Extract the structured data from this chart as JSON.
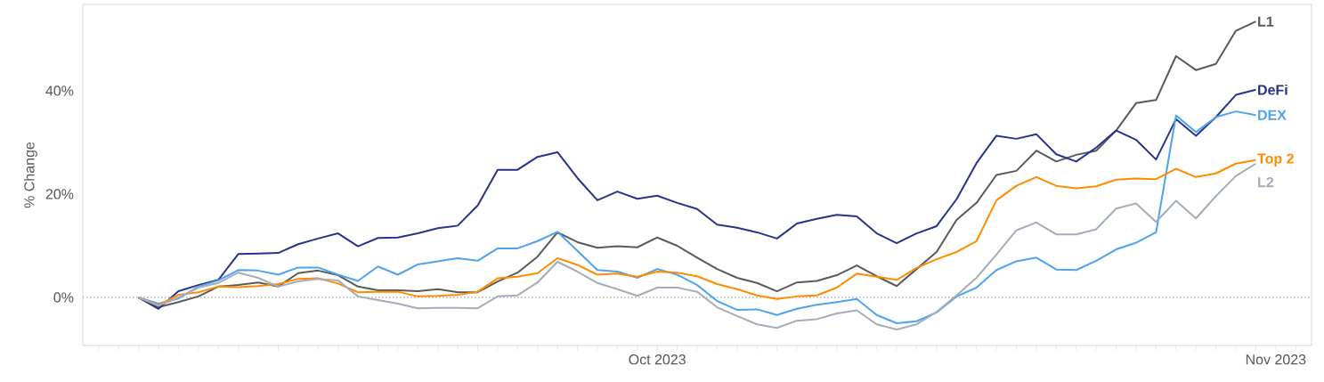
{
  "chart_data": {
    "type": "line",
    "ylabel": "% Change",
    "x": [
      "2023-09-05",
      "2023-09-06",
      "2023-09-07",
      "2023-09-08",
      "2023-09-09",
      "2023-09-10",
      "2023-09-11",
      "2023-09-12",
      "2023-09-13",
      "2023-09-14",
      "2023-09-15",
      "2023-09-16",
      "2023-09-17",
      "2023-09-18",
      "2023-09-19",
      "2023-09-20",
      "2023-09-21",
      "2023-09-22",
      "2023-09-23",
      "2023-09-24",
      "2023-09-25",
      "2023-09-26",
      "2023-09-27",
      "2023-09-28",
      "2023-09-29",
      "2023-09-30",
      "2023-10-01",
      "2023-10-02",
      "2023-10-03",
      "2023-10-04",
      "2023-10-05",
      "2023-10-06",
      "2023-10-07",
      "2023-10-08",
      "2023-10-09",
      "2023-10-10",
      "2023-10-11",
      "2023-10-12",
      "2023-10-13",
      "2023-10-14",
      "2023-10-15",
      "2023-10-16",
      "2023-10-17",
      "2023-10-18",
      "2023-10-19",
      "2023-10-20",
      "2023-10-21",
      "2023-10-22",
      "2023-10-23",
      "2023-10-24",
      "2023-10-25",
      "2023-10-26",
      "2023-10-27",
      "2023-10-28",
      "2023-10-29",
      "2023-10-30",
      "2023-10-31"
    ],
    "xlim": [
      "2023-09-02T05:00",
      "2023-11-02T19:00"
    ],
    "xticks": [
      {
        "value": "2023-09-03",
        "label": null
      },
      {
        "value": "2023-09-04",
        "label": null
      },
      {
        "value": "2023-09-05",
        "label": null
      },
      {
        "value": "2023-09-06",
        "label": null
      },
      {
        "value": "2023-09-07",
        "label": null
      },
      {
        "value": "2023-09-08",
        "label": null
      },
      {
        "value": "2023-09-09",
        "label": null
      },
      {
        "value": "2023-09-10",
        "label": null
      },
      {
        "value": "2023-09-11",
        "label": null
      },
      {
        "value": "2023-09-12",
        "label": null
      },
      {
        "value": "2023-09-13",
        "label": null
      },
      {
        "value": "2023-09-14",
        "label": null
      },
      {
        "value": "2023-09-15",
        "label": null
      },
      {
        "value": "2023-09-16",
        "label": null
      },
      {
        "value": "2023-09-17",
        "label": null
      },
      {
        "value": "2023-09-18",
        "label": null
      },
      {
        "value": "2023-09-19",
        "label": null
      },
      {
        "value": "2023-09-20",
        "label": null
      },
      {
        "value": "2023-09-21",
        "label": null
      },
      {
        "value": "2023-09-22",
        "label": null
      },
      {
        "value": "2023-09-23",
        "label": null
      },
      {
        "value": "2023-09-24",
        "label": null
      },
      {
        "value": "2023-09-25",
        "label": null
      },
      {
        "value": "2023-09-26",
        "label": null
      },
      {
        "value": "2023-09-27",
        "label": null
      },
      {
        "value": "2023-09-28",
        "label": null
      },
      {
        "value": "2023-09-29",
        "label": null
      },
      {
        "value": "2023-09-30",
        "label": null
      },
      {
        "value": "2023-10-01",
        "label": "Oct 2023"
      },
      {
        "value": "2023-10-02",
        "label": null
      },
      {
        "value": "2023-10-03",
        "label": null
      },
      {
        "value": "2023-10-04",
        "label": null
      },
      {
        "value": "2023-10-05",
        "label": null
      },
      {
        "value": "2023-10-06",
        "label": null
      },
      {
        "value": "2023-10-07",
        "label": null
      },
      {
        "value": "2023-10-08",
        "label": null
      },
      {
        "value": "2023-10-09",
        "label": null
      },
      {
        "value": "2023-10-10",
        "label": null
      },
      {
        "value": "2023-10-11",
        "label": null
      },
      {
        "value": "2023-10-12",
        "label": null
      },
      {
        "value": "2023-10-13",
        "label": null
      },
      {
        "value": "2023-10-14",
        "label": null
      },
      {
        "value": "2023-10-15",
        "label": null
      },
      {
        "value": "2023-10-16",
        "label": null
      },
      {
        "value": "2023-10-17",
        "label": null
      },
      {
        "value": "2023-10-18",
        "label": null
      },
      {
        "value": "2023-10-19",
        "label": null
      },
      {
        "value": "2023-10-20",
        "label": null
      },
      {
        "value": "2023-10-21",
        "label": null
      },
      {
        "value": "2023-10-22",
        "label": null
      },
      {
        "value": "2023-10-23",
        "label": null
      },
      {
        "value": "2023-10-24",
        "label": null
      },
      {
        "value": "2023-10-25",
        "label": null
      },
      {
        "value": "2023-10-26",
        "label": null
      },
      {
        "value": "2023-10-27",
        "label": null
      },
      {
        "value": "2023-10-28",
        "label": null
      },
      {
        "value": "2023-10-29",
        "label": null
      },
      {
        "value": "2023-10-30",
        "label": null
      },
      {
        "value": "2023-10-31",
        "label": null
      },
      {
        "value": "2023-11-01",
        "label": "Nov 2023"
      },
      {
        "value": "2023-11-02",
        "label": null
      }
    ],
    "ylim": [
      -9.3,
      56.7
    ],
    "yticks": [
      {
        "value": 0,
        "label": "0%"
      },
      {
        "value": 20,
        "label": "20%"
      },
      {
        "value": 40,
        "label": "40%"
      }
    ],
    "ref_lines": [
      {
        "axis": "y",
        "value": 0,
        "color": "#aaaaaa",
        "line_style": "dotted"
      }
    ],
    "series": [
      {
        "name": "L1",
        "color": "#5a5a5a",
        "values": [
          0,
          -1.9,
          -0.9,
          0.2,
          2.1,
          2.4,
          2.9,
          2.1,
          4.7,
          5.2,
          4.3,
          2.1,
          1.4,
          1.4,
          1.2,
          1.6,
          1.0,
          1.0,
          3.1,
          4.8,
          7.9,
          12.6,
          10.7,
          9.6,
          9.9,
          9.7,
          11.6,
          10.0,
          7.7,
          5.5,
          3.8,
          2.8,
          1.2,
          2.9,
          3.2,
          4.3,
          6.2,
          4.1,
          2.2,
          5.5,
          8.8,
          15.0,
          18.3,
          23.7,
          24.5,
          28.4,
          26.3,
          27.6,
          28.4,
          32.3,
          37.6,
          38.2,
          46.7,
          44.0,
          45.2,
          51.6,
          53.4
        ]
      },
      {
        "name": "DeFi",
        "color": "#27348b",
        "values": [
          0,
          -2.2,
          1.2,
          2.4,
          3.4,
          8.4,
          8.5,
          8.6,
          10.3,
          11.4,
          12.4,
          9.9,
          11.5,
          11.6,
          12.4,
          13.4,
          13.9,
          17.8,
          24.7,
          24.7,
          27.2,
          28.1,
          23.1,
          18.8,
          20.5,
          19.1,
          19.7,
          18.3,
          17.1,
          14.1,
          13.5,
          12.6,
          11.4,
          14.3,
          15.2,
          16.0,
          15.7,
          12.4,
          10.5,
          12.4,
          13.8,
          19.0,
          26.0,
          31.3,
          30.7,
          31.6,
          27.7,
          26.3,
          29.0,
          32.3,
          30.5,
          26.7,
          34.5,
          31.3,
          34.9,
          39.2,
          40.2
        ]
      },
      {
        "name": "DEX",
        "color": "#4da3ee",
        "values": [
          0,
          -1.2,
          -0.2,
          2.1,
          3.3,
          5.3,
          5.2,
          4.4,
          5.8,
          5.8,
          4.4,
          3.2,
          6.0,
          4.4,
          6.4,
          7.0,
          7.6,
          7.1,
          9.5,
          9.5,
          10.9,
          12.7,
          9.0,
          5.3,
          5.0,
          3.8,
          5.5,
          4.4,
          2.4,
          -0.7,
          -2.4,
          -2.3,
          -3.4,
          -2.2,
          -1.4,
          -0.9,
          -0.3,
          -3.4,
          -5.0,
          -4.6,
          -2.9,
          0.2,
          1.9,
          5.3,
          7.0,
          7.7,
          5.4,
          5.3,
          7.1,
          9.3,
          10.6,
          12.6,
          35.2,
          32.0,
          34.9,
          36.0,
          35.3
        ]
      },
      {
        "name": "Top 2",
        "color": "#ff8c00",
        "values": [
          0,
          -1.5,
          0.5,
          1.0,
          2.1,
          2.0,
          2.2,
          2.6,
          3.6,
          3.7,
          2.7,
          1.0,
          1.1,
          1.1,
          0.2,
          0.3,
          0.5,
          1.1,
          3.7,
          4.0,
          4.7,
          7.6,
          6.3,
          4.4,
          4.6,
          4.0,
          5.0,
          4.8,
          4.1,
          2.6,
          1.6,
          0.4,
          -0.3,
          0.2,
          0.4,
          1.9,
          4.6,
          4.0,
          3.4,
          5.7,
          7.4,
          8.8,
          10.9,
          18.8,
          21.6,
          23.3,
          21.6,
          21.1,
          21.5,
          22.8,
          23.0,
          22.9,
          24.9,
          23.3,
          24.0,
          25.9,
          26.6
        ]
      },
      {
        "name": "L2",
        "color": "#a3adbb",
        "values": [
          0,
          -1.6,
          0,
          1.9,
          2.8,
          4.8,
          3.8,
          2.1,
          3.1,
          3.6,
          3.3,
          0.2,
          -0.5,
          -1.2,
          -2.1,
          -2.0,
          -2.0,
          -2.1,
          0.2,
          0.4,
          2.9,
          6.9,
          5.0,
          2.8,
          1.6,
          0.3,
          1.9,
          1.9,
          1.1,
          -1.9,
          -3.6,
          -5.2,
          -5.9,
          -4.5,
          -4.2,
          -3.1,
          -2.5,
          -5.2,
          -6.2,
          -5.2,
          -2.8,
          0.4,
          3.8,
          8.3,
          13.0,
          14.5,
          12.2,
          12.2,
          13.2,
          17.2,
          18.2,
          14.6,
          18.7,
          15.3,
          19.6,
          23.5,
          25.9
        ]
      }
    ]
  }
}
